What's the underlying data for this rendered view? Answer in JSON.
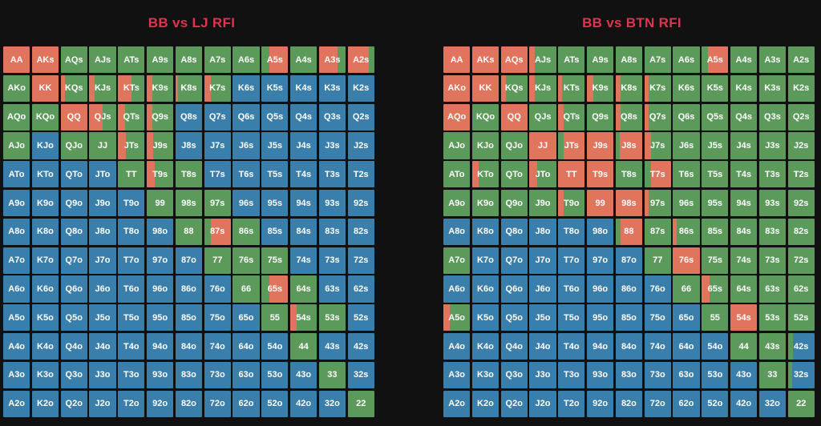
{
  "colors": {
    "raise": "#e0745c",
    "call": "#5c9a5c",
    "fold": "#3a7eab",
    "title": "#e0334f",
    "background": "#111111"
  },
  "ranks": [
    "A",
    "K",
    "Q",
    "J",
    "T",
    "9",
    "8",
    "7",
    "6",
    "5",
    "4",
    "3",
    "2"
  ],
  "charts": [
    {
      "title": "BB vs LJ RFI",
      "rows": [
        "RRCCCCCCCRCCC",
        "CRCCCCCCFFFFF",
        "CCRCCCFFFFFFF",
        "CFCCCCFFFFFFF",
        "FFFFCCCFFFFFF",
        "FFFFFCCCFFFFF",
        "FFFFFFCRCFFFF",
        "FFFFFFFCCCFFF",
        "FFFFFFFFCRCFF",
        "FFFFFFFFFCCCF",
        "FFFFFFFFFFCFF",
        "FFFFFFFFFFFCF",
        "FFFFFFFFFFFFC"
      ],
      "mix": {
        "0,9": {
          "c": 0.3
        },
        "0,11": {
          "r": 0.7
        },
        "0,12": {
          "r": 0.8
        },
        "1,2": {
          "r": 0.15
        },
        "1,3": {
          "r": 0.2
        },
        "1,4": {
          "r": 0.5
        },
        "1,5": {
          "r": 0.2
        },
        "1,6": {
          "r": 0.1
        },
        "1,7": {
          "r": 0.25
        },
        "2,3": {
          "r": 0.5
        },
        "2,4": {
          "r": 0.25
        },
        "2,5": {
          "r": 0.2
        },
        "3,4": {
          "r": 0.3
        },
        "3,5": {
          "r": 0.25
        },
        "4,5": {
          "r": 0.3
        },
        "6,7": {
          "c": 0.25
        },
        "8,9": {
          "c": 0.3
        },
        "9,10": {
          "r": 0.25
        }
      }
    },
    {
      "title": "BB vs BTN RFI",
      "rows": [
        "RRRCCCCCCRCCC",
        "RRCCCCCCCCCCC",
        "RCRCCCCCCCCCC",
        "CCCRRRRCCCCCC",
        "CCCCRRCRCCCCC",
        "CCCCCRRCCCCCC",
        "FFFFFFRCCCCCC",
        "CFFFFFFCRCCCC",
        "FFFFFFFFCCCCC",
        "CFFFFFFFFCRCC",
        "FFFFFFFFFFCCF",
        "FFFFFFFFFFFCF",
        "FFFFFFFFFFFFC"
      ],
      "mix": {
        "0,3": {
          "r": 0.2
        },
        "0,9": {
          "c": 0.25
        },
        "1,2": {
          "r": 0.2
        },
        "1,3": {
          "r": 0.2
        },
        "1,4": {
          "r": 0.15
        },
        "1,5": {
          "r": 0.25
        },
        "1,6": {
          "r": 0.2
        },
        "1,7": {
          "r": 0.15
        },
        "2,4": {
          "r": 0.2
        },
        "2,6": {
          "r": 0.2
        },
        "2,7": {
          "r": 0.15
        },
        "3,4": {
          "c": 0.2
        },
        "3,6": {
          "c": 0.15
        },
        "3,7": {
          "r": 0.25
        },
        "4,1": {
          "r": 0.25
        },
        "4,3": {
          "r": 0.3
        },
        "4,7": {
          "c": 0.25
        },
        "5,3": {
          "c": 0.3
        },
        "5,4": {
          "r": 0.2
        },
        "5,7": {
          "r": 0.15
        },
        "6,6": {
          "c": 0.2
        },
        "6,8": {
          "r": 0.15
        },
        "7,7": {
          "c": 0.1
        },
        "7,8": {
          "r": 0.2
        },
        "8,8": {
          "c": 0.2
        },
        "8,9": {
          "r": 0.3
        },
        "9,0": {
          "r": 0.25
        },
        "10,12": {
          "c": 0.2
        },
        "11,12": {
          "c": 0.15
        }
      }
    }
  ]
}
